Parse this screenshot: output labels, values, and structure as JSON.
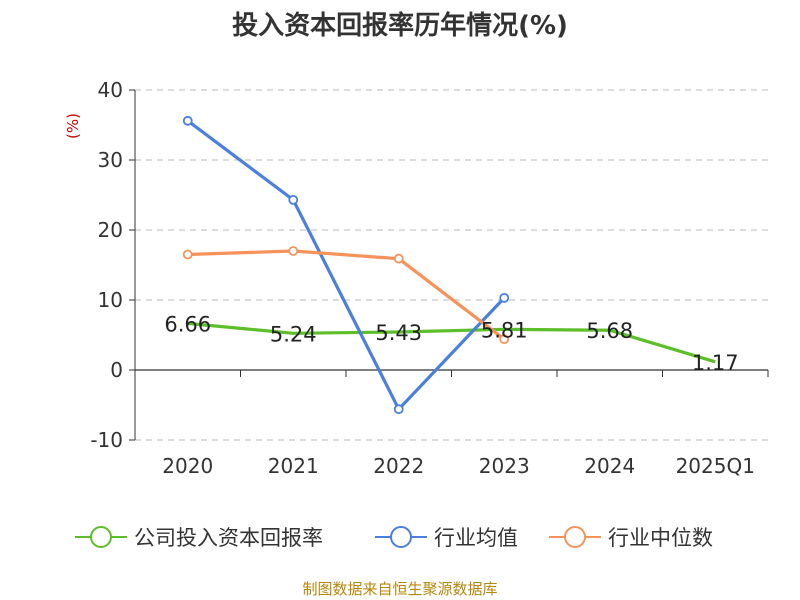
{
  "chart_data": {
    "type": "line",
    "title": "投入资本回报率历年情况(%)",
    "ylabel": "(%)",
    "xlabel": "",
    "categories": [
      "2020",
      "2021",
      "2022",
      "2023",
      "2024",
      "2025Q1"
    ],
    "ylim": [
      -10,
      40
    ],
    "yticks": [
      40,
      30,
      20,
      10,
      0,
      -10
    ],
    "grid": true,
    "legend_position": "bottom",
    "series": [
      {
        "name": "公司投入资本回报率",
        "color": "#5cbf2a",
        "values": [
          6.66,
          5.24,
          5.43,
          5.81,
          5.68,
          1.17
        ],
        "labels": [
          "6.66",
          "5.24",
          "5.43",
          "5.81",
          "5.68",
          "1.17"
        ],
        "show_markers": false
      },
      {
        "name": "行业均值",
        "color": "#4a7fde",
        "values": [
          35.6,
          24.3,
          -5.6,
          10.3,
          null,
          null
        ],
        "show_markers": true
      },
      {
        "name": "行业中位数",
        "color": "#f5935a",
        "values": [
          16.5,
          17.0,
          15.9,
          4.4,
          null,
          null
        ],
        "show_markers": true
      }
    ]
  },
  "source": "制图数据来自恒生聚源数据库"
}
